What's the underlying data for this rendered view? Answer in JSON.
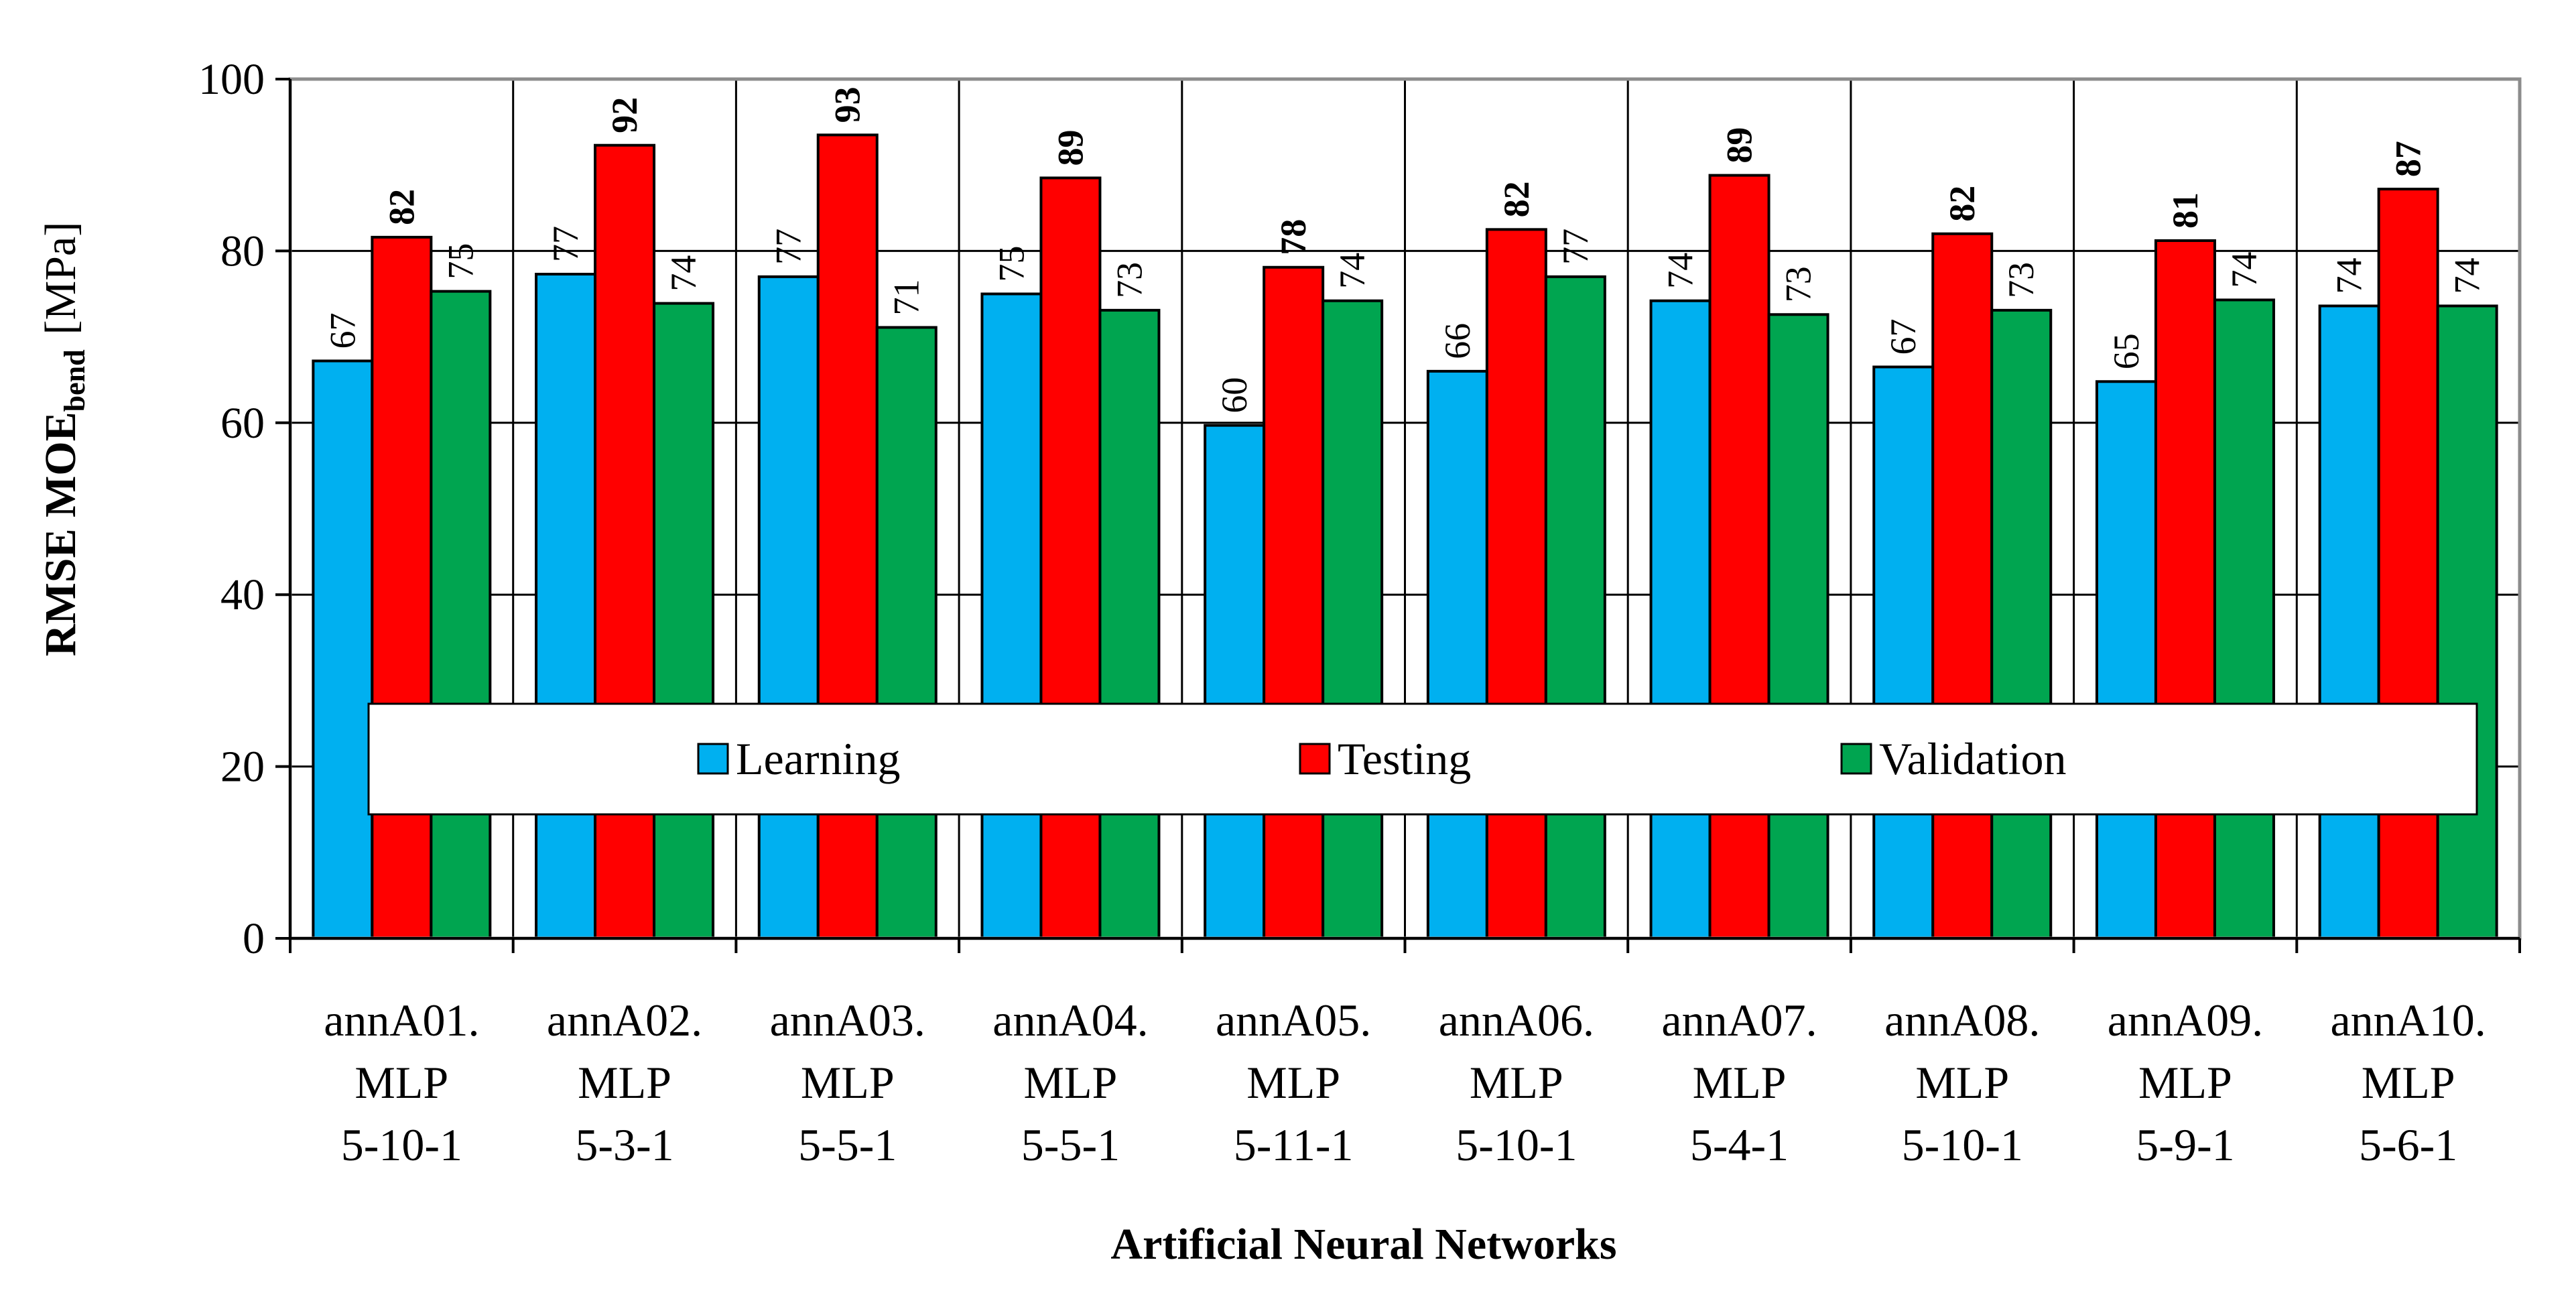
{
  "chart_data": {
    "type": "bar",
    "title": "",
    "xlabel": "Artificial Neural Networks",
    "ylabel": {
      "main": "RMSE MOE",
      "subscript": "bend",
      "unit": "[MPa]"
    },
    "ylim": [
      0,
      100
    ],
    "yticks": [
      0,
      20,
      40,
      60,
      80,
      100
    ],
    "grid": "vertical category separators",
    "legend": {
      "position": "center-bottom",
      "orientation": "horizontal"
    },
    "categories": [
      [
        "annA01.",
        "MLP",
        "5-10-1"
      ],
      [
        "annA02.",
        "MLP",
        "5-3-1"
      ],
      [
        "annA03.",
        "MLP",
        "5-5-1"
      ],
      [
        "annA04.",
        "MLP",
        "5-5-1"
      ],
      [
        "annA05.",
        "MLP",
        "5-11-1"
      ],
      [
        "annA06.",
        "MLP",
        "5-10-1"
      ],
      [
        "annA07.",
        "MLP",
        "5-4-1"
      ],
      [
        "annA08.",
        "MLP",
        "5-10-1"
      ],
      [
        "annA09.",
        "MLP",
        "5-9-1"
      ],
      [
        "annA10.",
        "MLP",
        "5-6-1"
      ]
    ],
    "series": [
      {
        "name": "Learning",
        "color": "#00b0f0",
        "values": [
          67.2,
          77.3,
          77.0,
          75.0,
          59.7,
          66.0,
          74.2,
          66.5,
          64.8,
          73.6
        ],
        "labels": [
          "67",
          "77",
          "77",
          "75",
          "60",
          "66",
          "74",
          "67",
          "65",
          "74"
        ],
        "bold_labels": false
      },
      {
        "name": "Testing",
        "color": "#ff0000",
        "values": [
          81.6,
          92.3,
          93.5,
          88.5,
          78.1,
          82.5,
          88.8,
          82.0,
          81.2,
          87.2
        ],
        "labels": [
          "82",
          "92",
          "93",
          "89",
          "78",
          "82",
          "89",
          "82",
          "81",
          "87"
        ],
        "bold_labels": true
      },
      {
        "name": "Validation",
        "color": "#00a550",
        "values": [
          75.3,
          73.9,
          71.1,
          73.1,
          74.2,
          77.0,
          72.6,
          73.1,
          74.3,
          73.6
        ],
        "labels": [
          "75",
          "74",
          "71",
          "73",
          "74",
          "77",
          "73",
          "73",
          "74",
          "74"
        ],
        "bold_labels": false
      }
    ]
  }
}
